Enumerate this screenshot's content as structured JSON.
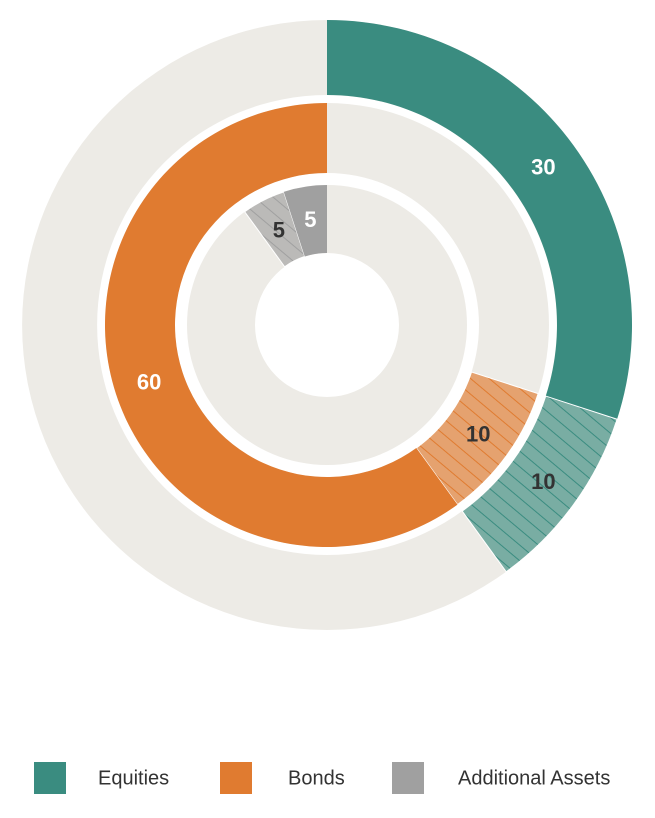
{
  "chart_data": {
    "type": "nested-donut",
    "series": [
      {
        "name": "Equities",
        "color": "#3a8c80",
        "values": [
          30,
          10
        ],
        "hatched": [
          false,
          true
        ]
      },
      {
        "name": "Bonds",
        "color": "#e07b30",
        "values": [
          10,
          60
        ],
        "hatched": [
          true,
          false
        ]
      },
      {
        "name": "Additional Assets",
        "color": "#a0a0a0",
        "values": [
          5,
          5
        ],
        "hatched": [
          true,
          false
        ]
      }
    ],
    "legend": "bottom"
  }
}
